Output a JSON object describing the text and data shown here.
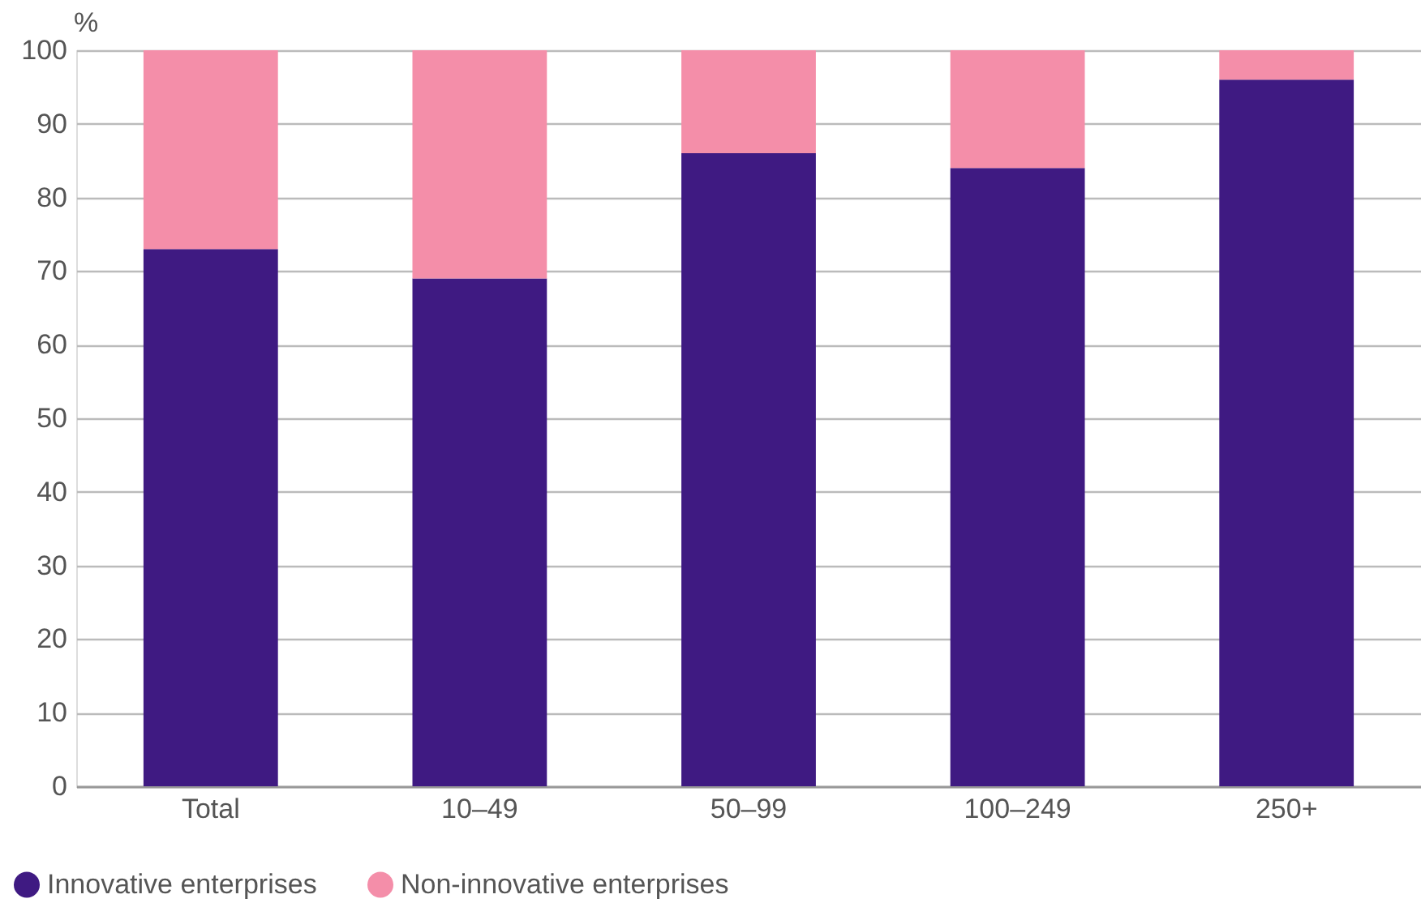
{
  "chart_data": {
    "type": "bar",
    "stacked": true,
    "ylabel": "%",
    "categories": [
      "Total",
      "10–49",
      "50–99",
      "100–249",
      "250+"
    ],
    "series": [
      {
        "name": "Innovative enterprises",
        "color": "#3f1a82",
        "values": [
          73,
          69,
          86,
          84,
          96
        ]
      },
      {
        "name": "Non-innovative enterprises",
        "color": "#f48ea9",
        "values": [
          27,
          31,
          14,
          16,
          4
        ]
      }
    ],
    "ylim": [
      0,
      100
    ],
    "yticks": [
      0,
      10,
      20,
      30,
      40,
      50,
      60,
      70,
      80,
      90,
      100
    ],
    "grid": "y",
    "legend": "bottom left"
  }
}
